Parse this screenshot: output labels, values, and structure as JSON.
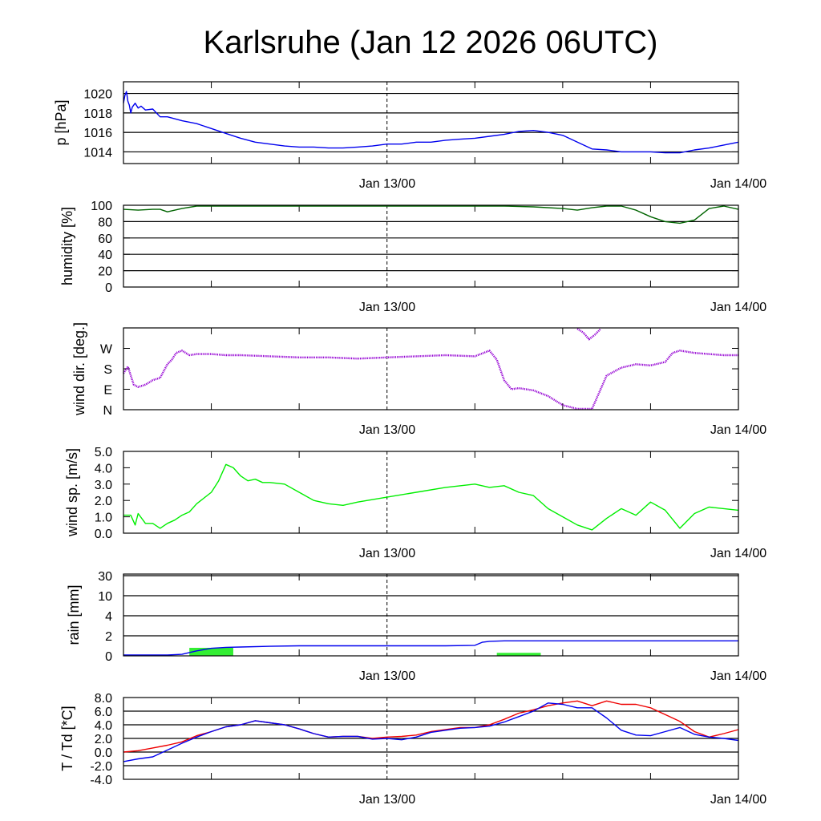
{
  "title": "Karlsruhe (Jan 12 2026 06UTC)",
  "colors": {
    "pressure": "#0000ee",
    "humidity": "#006400",
    "wind_dir": "#9400d3",
    "wind_speed": "#00ee00",
    "rain_bar": "#33ee33",
    "rain_cum": "#0000ee",
    "temperature": "#ee0000",
    "dewpoint": "#0000ee"
  },
  "chart_data": [
    {
      "type": "line",
      "ylabel": "p [hPa]",
      "x_tick_labels": [
        "Jan 13/00",
        "Jan 14/00"
      ],
      "x_range_hours": [
        0,
        42
      ],
      "ylim": [
        1012.8,
        1021.2
      ],
      "yticks": [
        1014,
        1016,
        1018,
        1020
      ],
      "ytick_labels": [
        "1014",
        "1016",
        "1018",
        "1020"
      ],
      "grid": true,
      "series": [
        {
          "color_key": "pressure",
          "x": [
            0,
            0.1,
            0.2,
            0.3,
            0.4,
            0.5,
            0.6,
            0.8,
            1.0,
            1.2,
            1.5,
            2.0,
            2.5,
            3,
            4,
            5,
            6,
            7,
            8,
            9,
            10,
            11,
            12,
            13,
            14,
            15,
            16,
            17,
            18,
            19,
            20,
            21,
            22,
            23,
            24,
            25,
            26,
            27,
            28,
            29,
            30,
            31,
            32,
            33,
            34,
            35,
            36,
            37,
            38,
            39,
            40,
            41,
            42
          ],
          "values": [
            1019.0,
            1019.8,
            1020.2,
            1019.2,
            1018.8,
            1018.0,
            1018.6,
            1019.0,
            1018.5,
            1018.7,
            1018.3,
            1018.4,
            1017.6,
            1017.6,
            1017.2,
            1016.9,
            1016.4,
            1015.9,
            1015.4,
            1015.0,
            1014.8,
            1014.6,
            1014.5,
            1014.5,
            1014.4,
            1014.4,
            1014.5,
            1014.6,
            1014.8,
            1014.8,
            1015.0,
            1015.0,
            1015.2,
            1015.3,
            1015.4,
            1015.6,
            1015.8,
            1016.1,
            1016.2,
            1016.0,
            1015.7,
            1015.0,
            1014.3,
            1014.2,
            1014.0,
            1014.0,
            1014.0,
            1013.9,
            1013.9,
            1014.2,
            1014.4,
            1014.7,
            1015.0
          ]
        }
      ]
    },
    {
      "type": "line",
      "ylabel": "humidity [%]",
      "x_tick_labels": [
        "Jan 13/00",
        "Jan 14/00"
      ],
      "x_range_hours": [
        0,
        42
      ],
      "ylim": [
        0,
        100
      ],
      "yticks": [
        0,
        20,
        40,
        60,
        80,
        100
      ],
      "ytick_labels": [
        "0",
        "20",
        "40",
        "60",
        "80",
        "100"
      ],
      "grid": true,
      "series": [
        {
          "color_key": "humidity",
          "x": [
            0,
            1,
            2,
            2.5,
            3,
            4,
            5,
            6,
            8,
            10,
            14,
            18,
            22,
            26,
            28,
            30,
            31,
            32,
            33,
            34,
            35,
            35.5,
            36,
            37,
            38,
            39,
            40,
            41,
            42
          ],
          "values": [
            95,
            94,
            95,
            95,
            92,
            96,
            99,
            100,
            100,
            100,
            100,
            100,
            99,
            100,
            98,
            96,
            94,
            97,
            100,
            99,
            94,
            90,
            86,
            80,
            78,
            82,
            96,
            100,
            95
          ]
        }
      ]
    },
    {
      "type": "scatter",
      "ylabel": "wind dir. [deg.]",
      "x_tick_labels": [
        "Jan 13/00",
        "Jan 14/00"
      ],
      "x_range_hours": [
        0,
        42
      ],
      "ylim": [
        0,
        360
      ],
      "yticks": [
        0,
        90,
        180,
        270
      ],
      "ytick_labels": [
        "N",
        "E",
        "S",
        "W"
      ],
      "grid": false,
      "series": [
        {
          "color_key": "wind_dir",
          "x": [
            0,
            0.3,
            0.7,
            1.0,
            1.5,
            2.0,
            2.5,
            3.0,
            3.3,
            3.6,
            4.0,
            4.5,
            5,
            6,
            7,
            8,
            10,
            12,
            14,
            16,
            18,
            20,
            22,
            24,
            25,
            25.5,
            26,
            26.5,
            27,
            28,
            29,
            30,
            31,
            32,
            33,
            34,
            35,
            36,
            37,
            37.5,
            38,
            39,
            40,
            41,
            42
          ],
          "values": [
            160,
            190,
            110,
            100,
            110,
            130,
            140,
            200,
            220,
            250,
            260,
            240,
            245,
            245,
            240,
            240,
            235,
            230,
            230,
            225,
            230,
            235,
            240,
            235,
            260,
            220,
            130,
            90,
            95,
            85,
            60,
            20,
            0,
            0,
            150,
            185,
            200,
            195,
            210,
            250,
            260,
            250,
            245,
            240,
            240
          ]
        },
        {
          "color_key": "wind_dir",
          "x": [
            31.0,
            31.4,
            31.8,
            32.2,
            32.6
          ],
          "values": [
            360,
            340,
            310,
            330,
            360
          ]
        }
      ]
    },
    {
      "type": "line",
      "ylabel": "wind sp. [m/s]",
      "x_tick_labels": [
        "Jan 13/00",
        "Jan 14/00"
      ],
      "x_range_hours": [
        0,
        42
      ],
      "ylim": [
        0,
        5
      ],
      "yticks": [
        0,
        1,
        2,
        3,
        4,
        5
      ],
      "ytick_labels": [
        "0.0",
        "1.0",
        "2.0",
        "3.0",
        "4.0",
        "5.0"
      ],
      "grid": false,
      "series": [
        {
          "color_key": "wind_speed",
          "x": [
            0,
            0.5,
            0.8,
            1.0,
            1.5,
            2.0,
            2.5,
            3.0,
            3.5,
            4.0,
            4.5,
            5.0,
            6.0,
            6.5,
            7.0,
            7.5,
            8.0,
            8.5,
            9.0,
            9.5,
            10,
            11,
            12,
            13,
            14,
            15,
            16,
            18,
            20,
            22,
            24,
            25,
            26,
            27,
            28,
            29,
            30,
            31,
            32,
            33,
            34,
            35,
            36,
            37,
            38,
            39,
            40,
            41,
            42
          ],
          "values": [
            1.1,
            1.1,
            0.5,
            1.2,
            0.6,
            0.6,
            0.3,
            0.6,
            0.8,
            1.1,
            1.3,
            1.8,
            2.5,
            3.2,
            4.2,
            4.0,
            3.5,
            3.2,
            3.3,
            3.1,
            3.1,
            3.0,
            2.5,
            2.0,
            1.8,
            1.7,
            1.9,
            2.2,
            2.5,
            2.8,
            3.0,
            2.8,
            2.9,
            2.5,
            2.3,
            1.5,
            1.0,
            0.5,
            0.2,
            0.9,
            1.5,
            1.1,
            1.9,
            1.4,
            0.3,
            1.2,
            1.6,
            1.5,
            1.4
          ]
        }
      ]
    },
    {
      "type": "bar",
      "ylabel": "rain [mm]",
      "x_tick_labels": [
        "Jan 13/00",
        "Jan 14/00"
      ],
      "x_range_hours": [
        0,
        42
      ],
      "yticks": [
        0,
        2,
        4,
        10,
        30
      ],
      "ytick_labels": [
        "0",
        "2",
        "4",
        "10",
        "30"
      ],
      "grid": true,
      "bars": [
        {
          "x_start": 4.5,
          "x_end": 7.5,
          "value": 0.8
        },
        {
          "x_start": 25.5,
          "x_end": 28.5,
          "value": 0.3
        }
      ],
      "series": [
        {
          "color_key": "rain_cum",
          "x": [
            0,
            2,
            3,
            4,
            5,
            6,
            7,
            8,
            10,
            12,
            14,
            16,
            18,
            20,
            22,
            24,
            24.5,
            25,
            26,
            28,
            30,
            34,
            38,
            42
          ],
          "values": [
            0,
            0,
            0.05,
            0.15,
            0.5,
            0.75,
            0.85,
            0.88,
            0.95,
            1.0,
            1.0,
            1.0,
            1.0,
            1.0,
            1.0,
            1.05,
            1.35,
            1.45,
            1.5,
            1.5,
            1.5,
            1.5,
            1.5,
            1.5
          ]
        }
      ]
    },
    {
      "type": "line",
      "ylabel": "T / Td [*C]",
      "x_tick_labels": [
        "Jan 13/00",
        "Jan 14/00"
      ],
      "x_range_hours": [
        0,
        42
      ],
      "ylim": [
        -4,
        8
      ],
      "yticks": [
        -4,
        -2,
        0,
        2,
        4,
        6,
        8
      ],
      "ytick_labels": [
        "-4.0",
        "-2.0",
        "0.0",
        "2.0",
        "4.0",
        "6.0",
        "8.0"
      ],
      "grid": true,
      "series": [
        {
          "color_key": "temperature",
          "x": [
            0,
            1,
            2,
            3,
            4,
            5,
            6,
            7,
            8,
            9,
            10,
            11,
            12,
            13,
            14,
            15,
            16,
            17,
            18,
            19,
            20,
            21,
            22,
            23,
            24,
            25,
            26,
            27,
            28,
            29,
            30,
            31,
            32,
            33,
            34,
            35,
            36,
            37,
            38,
            39,
            40,
            41,
            42
          ],
          "values": [
            0.0,
            0.2,
            0.6,
            1.0,
            1.5,
            2.4,
            3.0,
            3.7,
            4.0,
            4.6,
            4.3,
            4.0,
            3.4,
            2.7,
            2.2,
            2.3,
            2.3,
            2.0,
            2.2,
            2.3,
            2.5,
            3.0,
            3.3,
            3.6,
            3.6,
            4.0,
            4.8,
            5.7,
            6.2,
            6.8,
            7.2,
            7.5,
            6.8,
            7.5,
            7.0,
            7.0,
            6.5,
            5.5,
            4.5,
            3.0,
            2.2,
            2.7,
            3.3
          ]
        },
        {
          "color_key": "dewpoint",
          "x": [
            0,
            1,
            2,
            3,
            4,
            5,
            6,
            7,
            8,
            9,
            10,
            11,
            12,
            13,
            14,
            15,
            16,
            17,
            18,
            19,
            20,
            21,
            22,
            23,
            24,
            25,
            26,
            27,
            28,
            29,
            30,
            31,
            32,
            33,
            34,
            35,
            36,
            37,
            38,
            39,
            40,
            41,
            42
          ],
          "values": [
            -1.4,
            -1.0,
            -0.7,
            0.3,
            1.3,
            2.2,
            3.0,
            3.7,
            4.0,
            4.6,
            4.3,
            4.0,
            3.4,
            2.7,
            2.2,
            2.3,
            2.3,
            1.9,
            2.0,
            1.8,
            2.2,
            2.9,
            3.2,
            3.5,
            3.6,
            3.8,
            4.4,
            5.2,
            6.0,
            7.2,
            7.0,
            6.5,
            6.5,
            5.0,
            3.2,
            2.5,
            2.4,
            3.0,
            3.6,
            2.6,
            2.2,
            2.0,
            1.7
          ]
        }
      ]
    }
  ]
}
